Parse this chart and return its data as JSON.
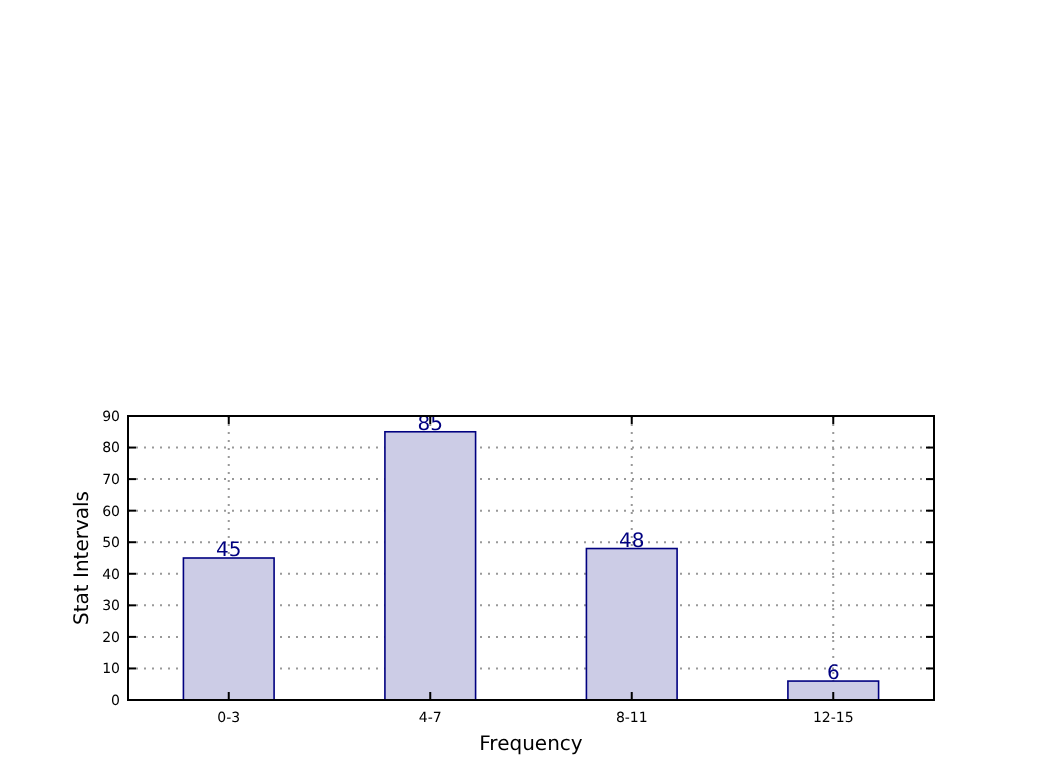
{
  "chart_data": {
    "type": "bar",
    "xlabel": "Frequency",
    "ylabel": "Stat Intervals",
    "categories": [
      "0-3",
      "4-7",
      "8-11",
      "12-15"
    ],
    "values": [
      45,
      85,
      48,
      6
    ],
    "color": "#ccccE6",
    "ylim": [
      0,
      90
    ],
    "yticks": [
      0,
      10,
      20,
      30,
      40,
      50,
      60,
      70,
      80,
      90
    ],
    "grid": true,
    "data_labels": true
  }
}
